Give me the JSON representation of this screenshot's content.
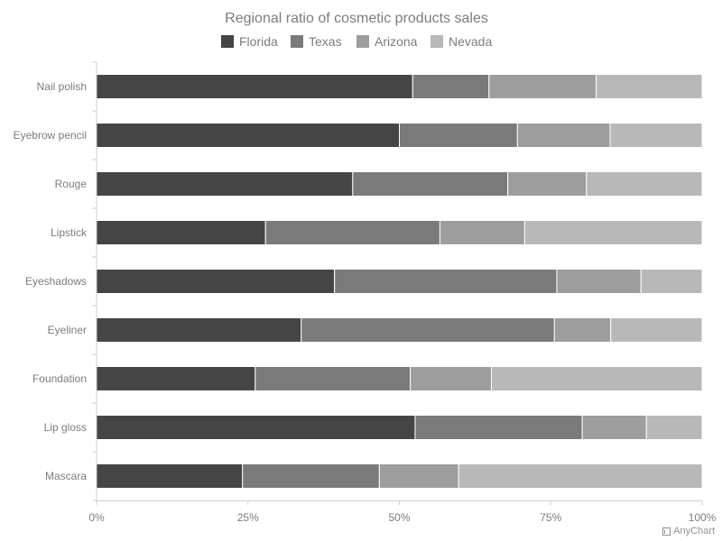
{
  "chart_data": {
    "type": "bar",
    "orientation": "horizontal",
    "stacking": "percent",
    "title": "Regional ratio of cosmetic products sales",
    "categories": [
      "Nail polish",
      "Eyebrow pencil",
      "Rouge",
      "Lipstick",
      "Eyeshadows",
      "Eyeliner",
      "Foundation",
      "Lip gloss",
      "Mascara"
    ],
    "series": [
      {
        "name": "Florida",
        "color": "#454545",
        "values": [
          52.2,
          50.0,
          42.3,
          27.9,
          39.3,
          33.8,
          26.2,
          52.6,
          24.1
        ]
      },
      {
        "name": "Texas",
        "color": "#7a7a7a",
        "values": [
          12.6,
          19.5,
          25.6,
          28.8,
          36.7,
          41.8,
          25.6,
          27.6,
          22.6
        ]
      },
      {
        "name": "Arizona",
        "color": "#9d9d9d",
        "values": [
          17.7,
          15.3,
          13.0,
          14.0,
          13.9,
          9.3,
          13.4,
          10.6,
          13.1
        ]
      },
      {
        "name": "Nevada",
        "color": "#b8b8b8",
        "values": [
          17.5,
          15.2,
          19.1,
          29.3,
          10.1,
          15.1,
          34.8,
          9.2,
          40.2
        ]
      }
    ],
    "x_ticks": [
      "0%",
      "25%",
      "50%",
      "75%",
      "100%"
    ],
    "xlim": [
      0,
      100
    ],
    "legend_position": "top",
    "grid": false
  },
  "credit": {
    "label": "AnyChart",
    "icon": "chart-icon"
  }
}
